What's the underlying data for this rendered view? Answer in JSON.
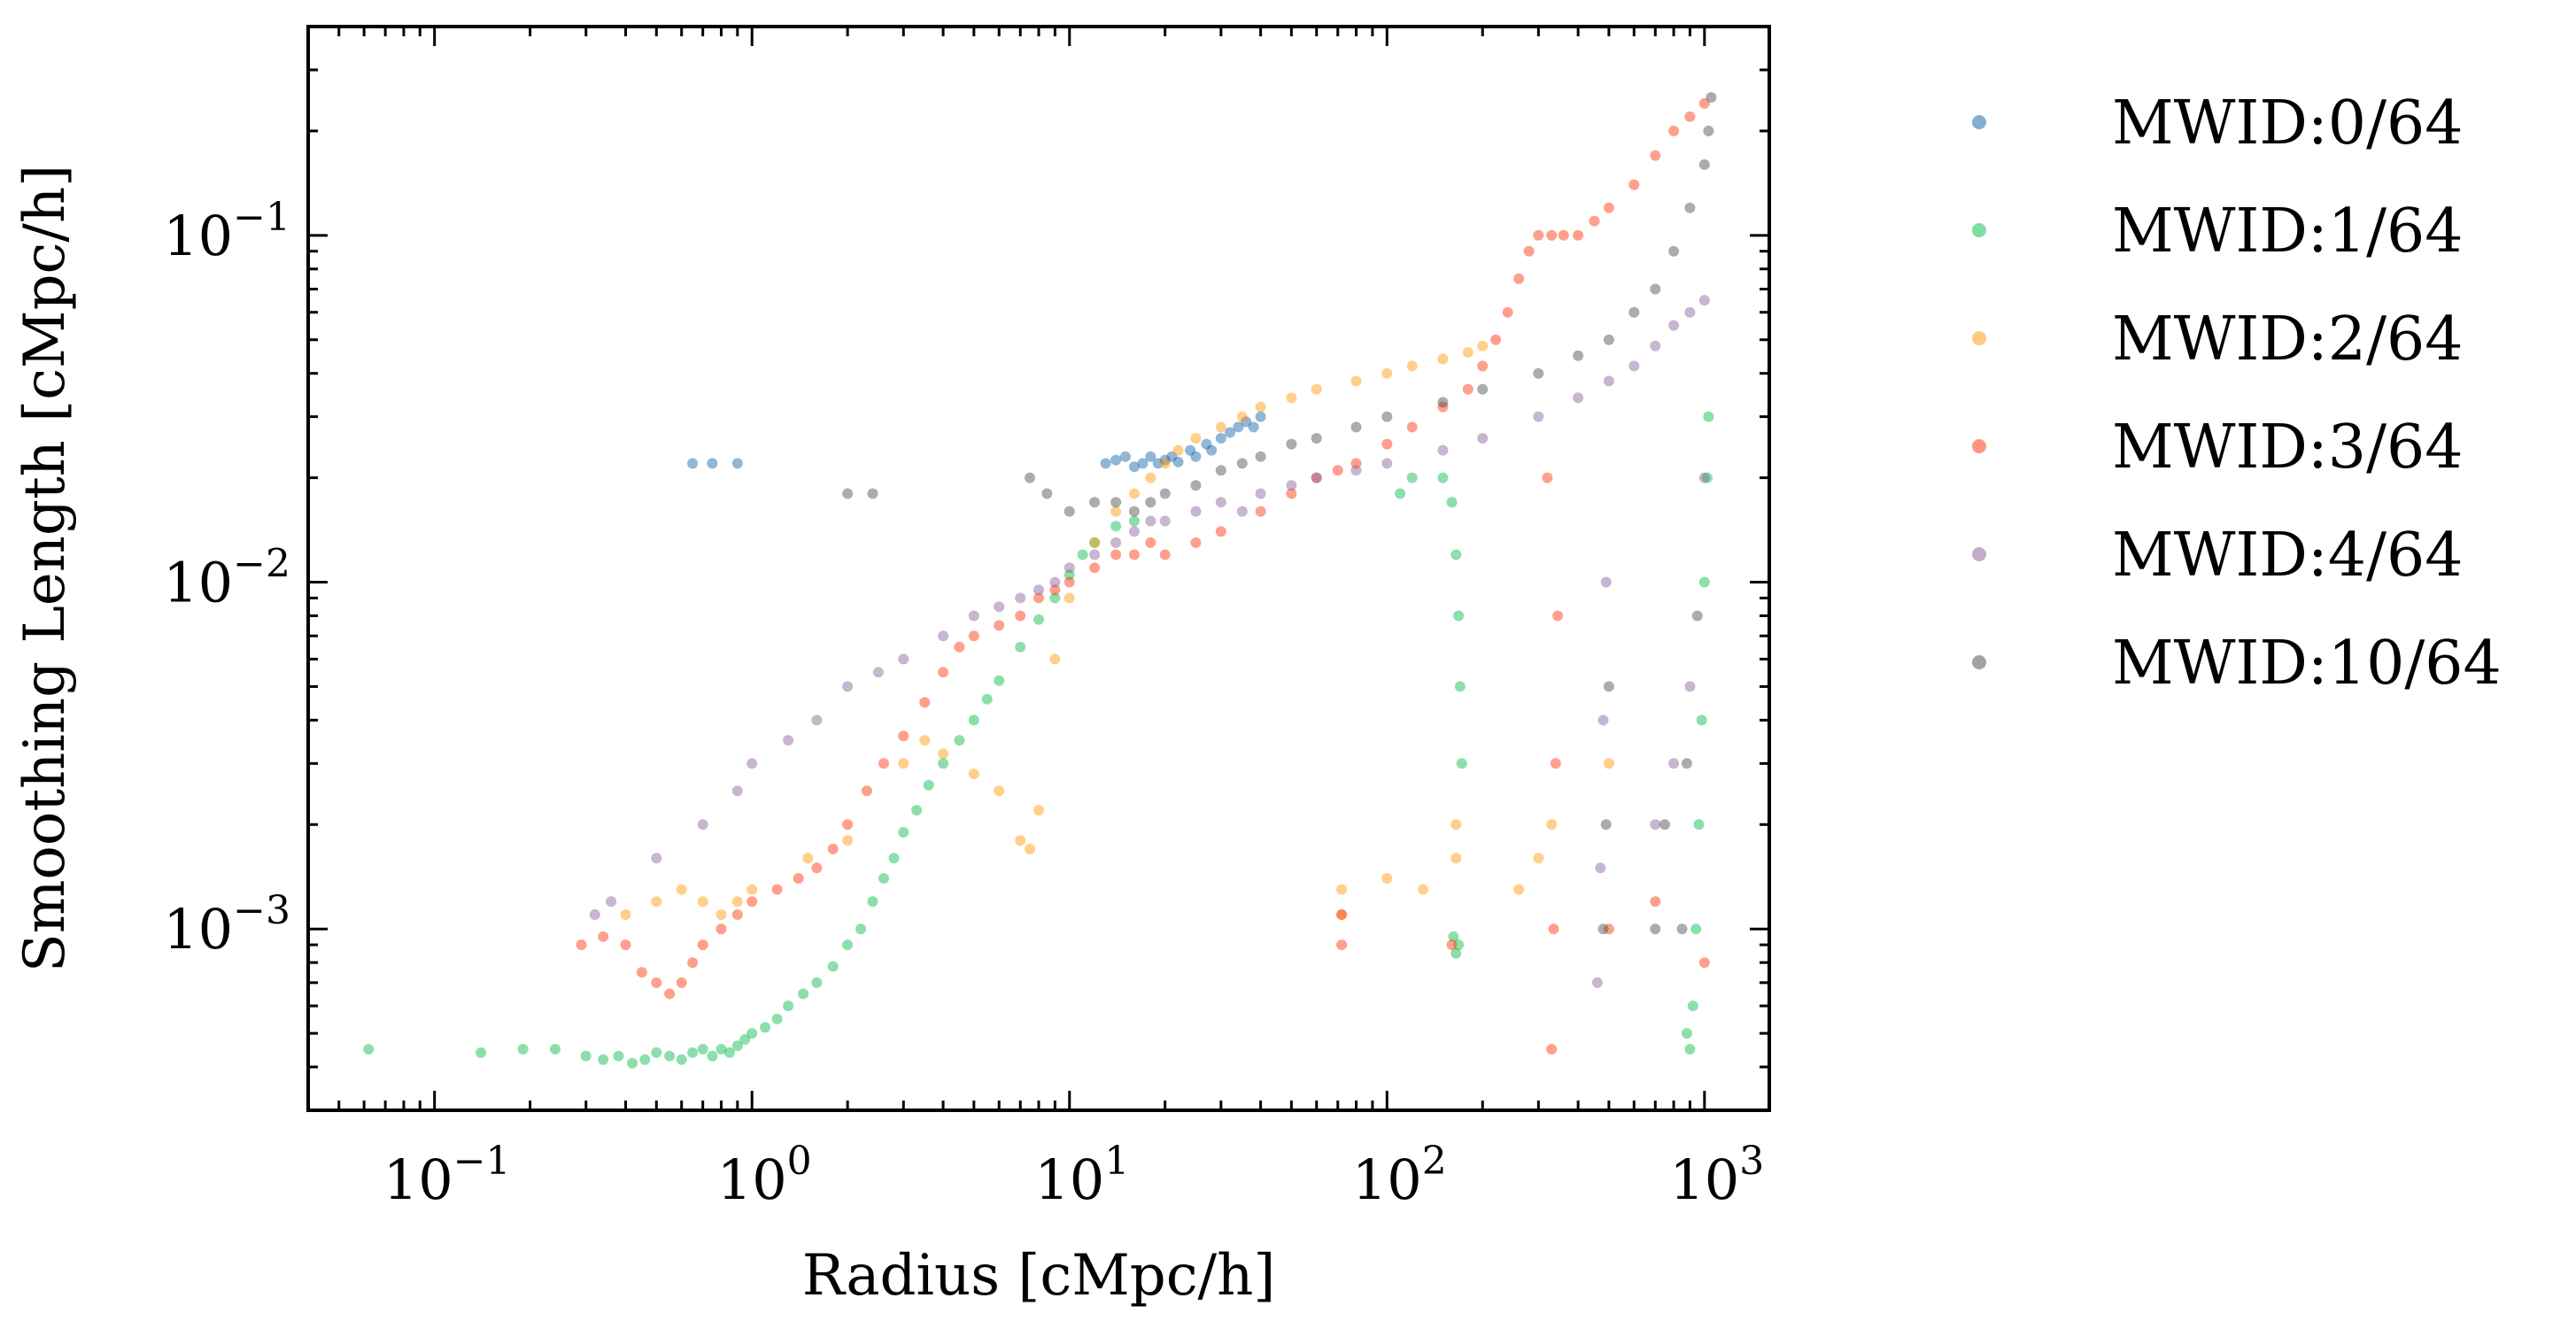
{
  "chart_data": {
    "type": "scatter",
    "xlabel": "Radius [cMpc/h]",
    "ylabel": "Smoothing Length [cMpc/h]",
    "xscale": "log",
    "yscale": "log",
    "xlim": [
      0.04,
      1600
    ],
    "ylim": [
      0.0003,
      0.4
    ],
    "x_ticks": [
      {
        "value": 0.1,
        "base": "10",
        "exp": "−1"
      },
      {
        "value": 1,
        "base": "10",
        "exp": "0"
      },
      {
        "value": 10,
        "base": "10",
        "exp": "1"
      },
      {
        "value": 100,
        "base": "10",
        "exp": "2"
      },
      {
        "value": 1000,
        "base": "10",
        "exp": "3"
      }
    ],
    "y_ticks": [
      {
        "value": 0.001,
        "base": "10",
        "exp": "−3"
      },
      {
        "value": 0.01,
        "base": "10",
        "exp": "−2"
      },
      {
        "value": 0.1,
        "base": "10",
        "exp": "−1"
      }
    ],
    "grid": false,
    "legend_placement": "outside-right",
    "series": [
      {
        "name": "MWID:0/64",
        "color": "#0C5DA5",
        "points": [
          [
            0.65,
            0.022
          ],
          [
            0.75,
            0.022
          ],
          [
            0.9,
            0.022
          ],
          [
            13,
            0.022
          ],
          [
            14,
            0.0225
          ],
          [
            15,
            0.023
          ],
          [
            16,
            0.0215
          ],
          [
            17,
            0.022
          ],
          [
            18,
            0.023
          ],
          [
            19,
            0.022
          ],
          [
            20,
            0.0225
          ],
          [
            21,
            0.023
          ],
          [
            22,
            0.0222
          ],
          [
            24,
            0.024
          ],
          [
            25,
            0.023
          ],
          [
            27,
            0.025
          ],
          [
            28,
            0.024
          ],
          [
            30,
            0.026
          ],
          [
            32,
            0.027
          ],
          [
            34,
            0.028
          ],
          [
            36,
            0.029
          ],
          [
            38,
            0.028
          ],
          [
            40,
            0.03
          ]
        ]
      },
      {
        "name": "MWID:1/64",
        "color": "#00B945",
        "points": [
          [
            0.062,
            0.00045
          ],
          [
            0.14,
            0.00044
          ],
          [
            0.19,
            0.00045
          ],
          [
            0.24,
            0.00045
          ],
          [
            0.3,
            0.00043
          ],
          [
            0.34,
            0.00042
          ],
          [
            0.38,
            0.00043
          ],
          [
            0.42,
            0.00041
          ],
          [
            0.46,
            0.00042
          ],
          [
            0.5,
            0.00044
          ],
          [
            0.55,
            0.00043
          ],
          [
            0.6,
            0.00042
          ],
          [
            0.65,
            0.00044
          ],
          [
            0.7,
            0.00045
          ],
          [
            0.75,
            0.00043
          ],
          [
            0.8,
            0.00045
          ],
          [
            0.85,
            0.00044
          ],
          [
            0.9,
            0.00046
          ],
          [
            0.95,
            0.00048
          ],
          [
            1.0,
            0.0005
          ],
          [
            1.1,
            0.00052
          ],
          [
            1.2,
            0.00055
          ],
          [
            1.3,
            0.0006
          ],
          [
            1.45,
            0.00065
          ],
          [
            1.6,
            0.0007
          ],
          [
            1.8,
            0.00078
          ],
          [
            2.0,
            0.0009
          ],
          [
            2.2,
            0.001
          ],
          [
            2.4,
            0.0012
          ],
          [
            2.6,
            0.0014
          ],
          [
            2.8,
            0.0016
          ],
          [
            3.0,
            0.0019
          ],
          [
            3.3,
            0.0022
          ],
          [
            3.6,
            0.0026
          ],
          [
            4.0,
            0.003
          ],
          [
            4.5,
            0.0035
          ],
          [
            5.0,
            0.004
          ],
          [
            5.5,
            0.0046
          ],
          [
            6.0,
            0.0052
          ],
          [
            7.0,
            0.0065
          ],
          [
            8.0,
            0.0078
          ],
          [
            9.0,
            0.009
          ],
          [
            10,
            0.0105
          ],
          [
            11,
            0.012
          ],
          [
            12,
            0.013
          ],
          [
            14,
            0.0145
          ],
          [
            16,
            0.015
          ],
          [
            110,
            0.018
          ],
          [
            120,
            0.02
          ],
          [
            150,
            0.02
          ],
          [
            160,
            0.017
          ],
          [
            165,
            0.012
          ],
          [
            168,
            0.008
          ],
          [
            170,
            0.005
          ],
          [
            172,
            0.003
          ],
          [
            162,
            0.00095
          ],
          [
            165,
            0.00085
          ],
          [
            168,
            0.0009
          ],
          [
            880,
            0.0005
          ],
          [
            900,
            0.00045
          ],
          [
            920,
            0.0006
          ],
          [
            940,
            0.001
          ],
          [
            960,
            0.002
          ],
          [
            980,
            0.004
          ],
          [
            1000,
            0.01
          ],
          [
            1020,
            0.02
          ],
          [
            1030,
            0.03
          ]
        ]
      },
      {
        "name": "MWID:2/64",
        "color": "#FF9500",
        "points": [
          [
            0.4,
            0.0011
          ],
          [
            0.5,
            0.0012
          ],
          [
            0.6,
            0.0013
          ],
          [
            0.7,
            0.0012
          ],
          [
            0.8,
            0.0011
          ],
          [
            0.9,
            0.0012
          ],
          [
            1.0,
            0.0013
          ],
          [
            1.5,
            0.0016
          ],
          [
            2.0,
            0.0018
          ],
          [
            3.0,
            0.003
          ],
          [
            3.5,
            0.0035
          ],
          [
            4.0,
            0.0032
          ],
          [
            5.0,
            0.0028
          ],
          [
            6.0,
            0.0025
          ],
          [
            7.0,
            0.0018
          ],
          [
            7.5,
            0.0017
          ],
          [
            8.0,
            0.0022
          ],
          [
            9.0,
            0.006
          ],
          [
            10,
            0.009
          ],
          [
            12,
            0.013
          ],
          [
            14,
            0.016
          ],
          [
            16,
            0.018
          ],
          [
            18,
            0.02
          ],
          [
            20,
            0.022
          ],
          [
            22,
            0.024
          ],
          [
            25,
            0.026
          ],
          [
            30,
            0.028
          ],
          [
            35,
            0.03
          ],
          [
            40,
            0.032
          ],
          [
            50,
            0.034
          ],
          [
            60,
            0.036
          ],
          [
            80,
            0.038
          ],
          [
            100,
            0.04
          ],
          [
            120,
            0.042
          ],
          [
            150,
            0.044
          ],
          [
            180,
            0.046
          ],
          [
            200,
            0.048
          ],
          [
            72,
            0.0011
          ],
          [
            72,
            0.0013
          ],
          [
            100,
            0.0014
          ],
          [
            130,
            0.0013
          ],
          [
            165,
            0.0016
          ],
          [
            165,
            0.002
          ],
          [
            260,
            0.0013
          ],
          [
            300,
            0.0016
          ],
          [
            330,
            0.002
          ],
          [
            500,
            0.003
          ]
        ]
      },
      {
        "name": "MWID:3/64",
        "color": "#FF2C00",
        "points": [
          [
            0.29,
            0.0009
          ],
          [
            0.34,
            0.00095
          ],
          [
            0.4,
            0.0009
          ],
          [
            0.45,
            0.00075
          ],
          [
            0.5,
            0.0007
          ],
          [
            0.55,
            0.00065
          ],
          [
            0.6,
            0.0007
          ],
          [
            0.65,
            0.0008
          ],
          [
            0.7,
            0.0009
          ],
          [
            0.8,
            0.001
          ],
          [
            0.9,
            0.0011
          ],
          [
            1.0,
            0.0012
          ],
          [
            1.2,
            0.0013
          ],
          [
            1.4,
            0.0014
          ],
          [
            1.6,
            0.0015
          ],
          [
            1.8,
            0.0017
          ],
          [
            2.0,
            0.002
          ],
          [
            2.3,
            0.0025
          ],
          [
            2.6,
            0.003
          ],
          [
            3.0,
            0.0036
          ],
          [
            3.5,
            0.0045
          ],
          [
            4.0,
            0.0055
          ],
          [
            4.5,
            0.0065
          ],
          [
            5.0,
            0.007
          ],
          [
            6.0,
            0.0075
          ],
          [
            7.0,
            0.008
          ],
          [
            8.0,
            0.009
          ],
          [
            9.0,
            0.0095
          ],
          [
            10,
            0.01
          ],
          [
            12,
            0.011
          ],
          [
            14,
            0.012
          ],
          [
            16,
            0.012
          ],
          [
            18,
            0.013
          ],
          [
            20,
            0.012
          ],
          [
            25,
            0.013
          ],
          [
            30,
            0.014
          ],
          [
            40,
            0.016
          ],
          [
            50,
            0.018
          ],
          [
            60,
            0.02
          ],
          [
            70,
            0.021
          ],
          [
            80,
            0.022
          ],
          [
            100,
            0.025
          ],
          [
            120,
            0.028
          ],
          [
            150,
            0.032
          ],
          [
            180,
            0.036
          ],
          [
            200,
            0.042
          ],
          [
            220,
            0.05
          ],
          [
            240,
            0.06
          ],
          [
            260,
            0.075
          ],
          [
            280,
            0.09
          ],
          [
            300,
            0.1
          ],
          [
            330,
            0.1
          ],
          [
            360,
            0.1
          ],
          [
            400,
            0.1
          ],
          [
            450,
            0.11
          ],
          [
            500,
            0.12
          ],
          [
            600,
            0.14
          ],
          [
            700,
            0.17
          ],
          [
            800,
            0.2
          ],
          [
            900,
            0.22
          ],
          [
            1000,
            0.24
          ],
          [
            330,
            0.00045
          ],
          [
            335,
            0.001
          ],
          [
            340,
            0.003
          ],
          [
            345,
            0.008
          ],
          [
            320,
            0.02
          ],
          [
            72,
            0.0009
          ],
          [
            72,
            0.0011
          ],
          [
            160,
            0.0009
          ],
          [
            500,
            0.001
          ],
          [
            700,
            0.0012
          ],
          [
            1000,
            0.0008
          ]
        ]
      },
      {
        "name": "MWID:4/64",
        "color": "#845B97",
        "points": [
          [
            0.32,
            0.0011
          ],
          [
            0.36,
            0.0012
          ],
          [
            0.5,
            0.0016
          ],
          [
            0.7,
            0.002
          ],
          [
            0.9,
            0.0025
          ],
          [
            1.0,
            0.003
          ],
          [
            1.3,
            0.0035
          ],
          [
            1.6,
            0.004
          ],
          [
            2.0,
            0.005
          ],
          [
            2.5,
            0.0055
          ],
          [
            3.0,
            0.006
          ],
          [
            4.0,
            0.007
          ],
          [
            5.0,
            0.008
          ],
          [
            6.0,
            0.0085
          ],
          [
            7.0,
            0.009
          ],
          [
            8.0,
            0.0095
          ],
          [
            9.0,
            0.01
          ],
          [
            10,
            0.011
          ],
          [
            12,
            0.012
          ],
          [
            14,
            0.013
          ],
          [
            16,
            0.014
          ],
          [
            18,
            0.015
          ],
          [
            20,
            0.015
          ],
          [
            25,
            0.016
          ],
          [
            30,
            0.017
          ],
          [
            35,
            0.016
          ],
          [
            40,
            0.018
          ],
          [
            50,
            0.019
          ],
          [
            60,
            0.02
          ],
          [
            80,
            0.021
          ],
          [
            100,
            0.022
          ],
          [
            150,
            0.024
          ],
          [
            200,
            0.026
          ],
          [
            300,
            0.03
          ],
          [
            400,
            0.034
          ],
          [
            500,
            0.038
          ],
          [
            600,
            0.042
          ],
          [
            700,
            0.048
          ],
          [
            800,
            0.055
          ],
          [
            900,
            0.06
          ],
          [
            1000,
            0.065
          ],
          [
            460,
            0.0007
          ],
          [
            470,
            0.0015
          ],
          [
            480,
            0.004
          ],
          [
            490,
            0.01
          ],
          [
            700,
            0.002
          ],
          [
            800,
            0.003
          ],
          [
            900,
            0.005
          ],
          [
            1000,
            0.02
          ]
        ]
      },
      {
        "name": "MWID:10/64",
        "color": "#474747",
        "points": [
          [
            2.0,
            0.018
          ],
          [
            2.4,
            0.018
          ],
          [
            7.5,
            0.02
          ],
          [
            8.5,
            0.018
          ],
          [
            10,
            0.016
          ],
          [
            12,
            0.017
          ],
          [
            14,
            0.017
          ],
          [
            16,
            0.016
          ],
          [
            18,
            0.017
          ],
          [
            20,
            0.018
          ],
          [
            25,
            0.019
          ],
          [
            30,
            0.021
          ],
          [
            35,
            0.022
          ],
          [
            40,
            0.023
          ],
          [
            50,
            0.025
          ],
          [
            60,
            0.026
          ],
          [
            80,
            0.028
          ],
          [
            100,
            0.03
          ],
          [
            150,
            0.033
          ],
          [
            200,
            0.036
          ],
          [
            300,
            0.04
          ],
          [
            400,
            0.045
          ],
          [
            500,
            0.05
          ],
          [
            600,
            0.06
          ],
          [
            700,
            0.07
          ],
          [
            800,
            0.09
          ],
          [
            900,
            0.12
          ],
          [
            1000,
            0.16
          ],
          [
            1030,
            0.2
          ],
          [
            1050,
            0.25
          ],
          [
            480,
            0.001
          ],
          [
            490,
            0.002
          ],
          [
            500,
            0.005
          ],
          [
            700,
            0.001
          ],
          [
            750,
            0.002
          ],
          [
            850,
            0.001
          ],
          [
            880,
            0.003
          ],
          [
            950,
            0.008
          ]
        ]
      }
    ]
  }
}
